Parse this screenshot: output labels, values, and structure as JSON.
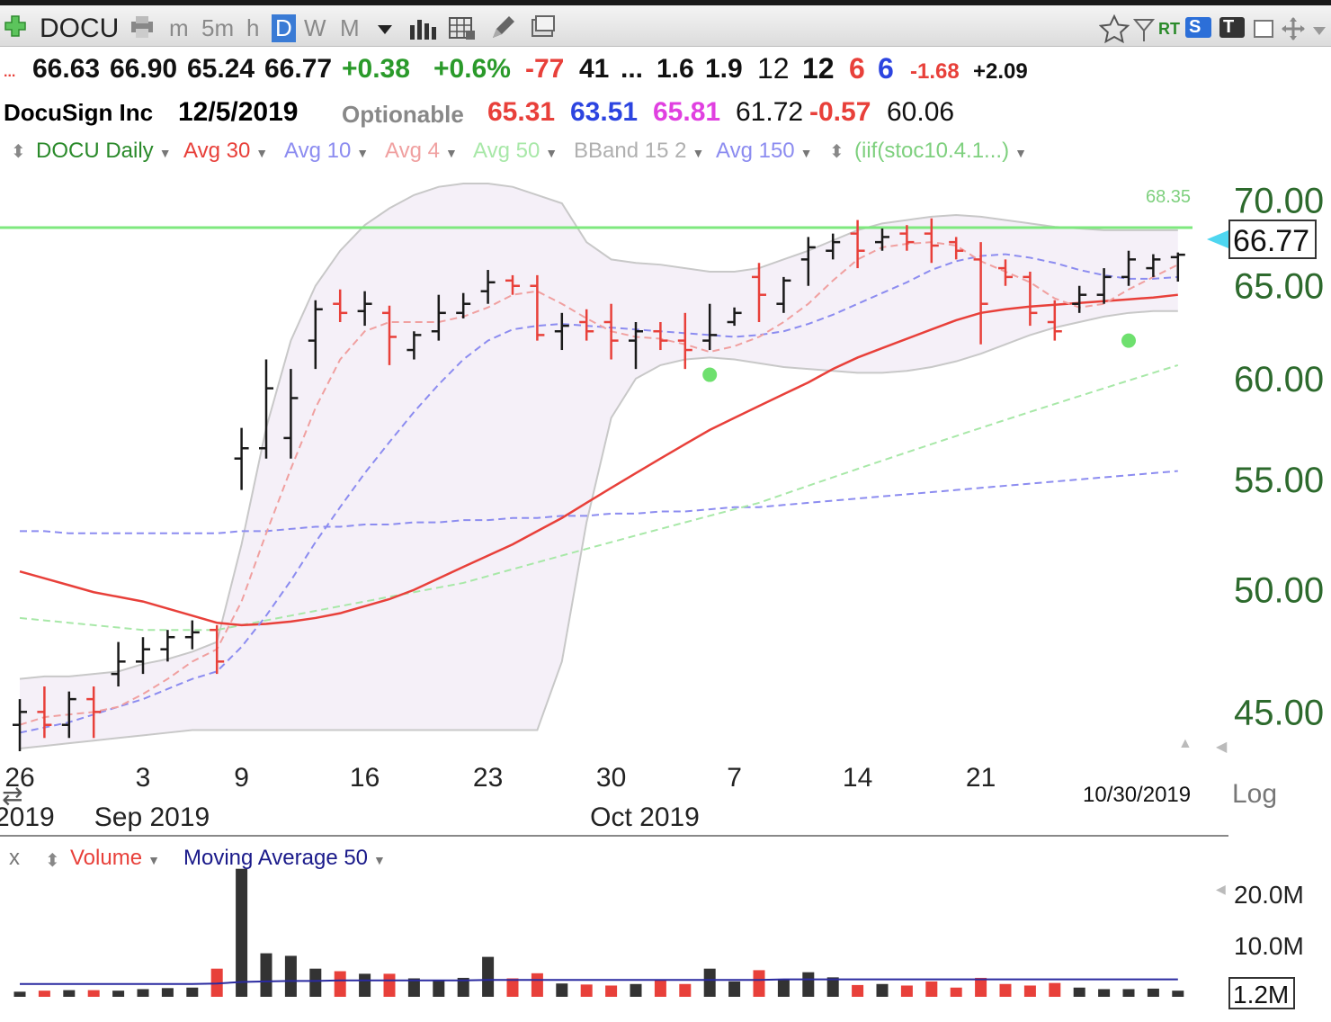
{
  "toolbar": {
    "symbol": "DOCU",
    "timeframes": [
      "m",
      "5m",
      "h",
      "D",
      "W",
      "M"
    ],
    "selected": "D",
    "sv_badge": "S",
    "rt_label": "RT",
    "t_badge": "T"
  },
  "quote": {
    "open": "66.63",
    "high": "66.90",
    "low": "65.24",
    "close": "66.77",
    "change": "+0.38",
    "change_pct": "+0.6%",
    "v1": "-77",
    "v2": "41",
    "dots": "...",
    "v3": "1.6",
    "v4": "1.9",
    "v5": "12",
    "v6": "12",
    "v7": "6",
    "v8": "6",
    "v9": "-1.68",
    "v10": "+2.09",
    "lead": "..."
  },
  "info": {
    "name": "DocuSign Inc",
    "date": "12/5/2019",
    "optionable": "Optionable",
    "n1": "65.31",
    "n2": "63.51",
    "n3": "65.81",
    "n4": "61.72",
    "n5": "-0.57",
    "n6": "60.06"
  },
  "indicators": [
    {
      "label": "DOCU Daily",
      "color": "#2a8a2a"
    },
    {
      "label": "Avg 30",
      "color": "#e8403a"
    },
    {
      "label": "Avg 10",
      "color": "#8c8cf0"
    },
    {
      "label": "Avg 4",
      "color": "#f0a0a0"
    },
    {
      "label": "Avg 50",
      "color": "#a8e8a8"
    },
    {
      "label": "BBand 15 2",
      "color": "#b0b0b0"
    },
    {
      "label": "Avg 150",
      "color": "#8c8cf0"
    },
    {
      "label": "(iif(stoc10.4.1...)",
      "color": "#7ed07e"
    }
  ],
  "colors": {
    "up": "#1a1a1a",
    "down": "#e8403a",
    "band": "#f5f0f8",
    "greenline": "#7ee87e"
  },
  "chart_data": {
    "type": "bar",
    "title": "DOCU Daily",
    "ylim": [
      43.5,
      71.5
    ],
    "yticks": [
      45,
      50,
      55,
      60,
      65,
      70
    ],
    "ytick_labels": [
      "45.00",
      "50.00",
      "55.00",
      "60.00",
      "65.00",
      "70.00"
    ],
    "scale": "Log",
    "last_price": "66.77",
    "green_line_value": 68.35,
    "green_line_label": "68.35",
    "cursor_date": "10/30/2019",
    "x_tick_labels": [
      {
        "label": "26",
        "i": 0
      },
      {
        "label": "3",
        "i": 5
      },
      {
        "label": "9",
        "i": 9
      },
      {
        "label": "16",
        "i": 14
      },
      {
        "label": "23",
        "i": 19
      },
      {
        "label": "30",
        "i": 24
      },
      {
        "label": "7",
        "i": 29
      },
      {
        "label": "14",
        "i": 34
      },
      {
        "label": "21",
        "i": 39
      }
    ],
    "x_month_labels": [
      {
        "label": "2019",
        "i": 0
      },
      {
        "label": "Sep 2019",
        "i": 5
      },
      {
        "label": "Oct 2019",
        "i": 25
      }
    ],
    "ohlc": [
      [
        44.5,
        45.5,
        43.5,
        45.0
      ],
      [
        45.0,
        46.0,
        44.0,
        44.5
      ],
      [
        44.5,
        45.8,
        44.0,
        45.5
      ],
      [
        45.5,
        46.0,
        44.0,
        45.0
      ],
      [
        46.5,
        47.8,
        46.0,
        47.0
      ],
      [
        47.0,
        48.0,
        46.5,
        47.5
      ],
      [
        47.5,
        48.3,
        47.0,
        48.0
      ],
      [
        48.0,
        48.7,
        47.5,
        48.2
      ],
      [
        48.3,
        48.5,
        46.5,
        47.0
      ],
      [
        56.0,
        57.5,
        54.5,
        56.5
      ],
      [
        56.5,
        61.0,
        56.0,
        59.5
      ],
      [
        57.0,
        60.5,
        56.0,
        59.0
      ],
      [
        62.0,
        64.2,
        60.5,
        63.7
      ],
      [
        64.0,
        64.8,
        63.0,
        63.5
      ],
      [
        63.6,
        64.7,
        62.8,
        64.0
      ],
      [
        63.5,
        63.9,
        60.7,
        62.2
      ],
      [
        61.5,
        62.5,
        61.0,
        62.3
      ],
      [
        62.5,
        64.5,
        62.0,
        63.5
      ],
      [
        63.5,
        64.6,
        63.2,
        64.0
      ],
      [
        64.7,
        65.9,
        64.0,
        65.2
      ],
      [
        65.3,
        65.6,
        64.5,
        65.0
      ],
      [
        65.0,
        65.6,
        62.0,
        62.3
      ],
      [
        62.5,
        63.5,
        61.5,
        62.8
      ],
      [
        63.0,
        63.7,
        62.0,
        62.5
      ],
      [
        63.0,
        64.0,
        61.0,
        62.0
      ],
      [
        62.0,
        63.0,
        60.5,
        62.5
      ],
      [
        62.5,
        63.0,
        61.5,
        62.0
      ],
      [
        62.0,
        63.5,
        60.5,
        61.5
      ],
      [
        62.0,
        64.0,
        61.5,
        62.3
      ],
      [
        63.0,
        63.8,
        62.8,
        63.5
      ],
      [
        65.5,
        66.3,
        63.0,
        64.5
      ],
      [
        64.0,
        65.5,
        63.5,
        65.3
      ],
      [
        66.5,
        67.8,
        65.0,
        67.2
      ],
      [
        67.0,
        68.0,
        66.5,
        67.5
      ],
      [
        68.0,
        68.8,
        66.0,
        67.0
      ],
      [
        67.5,
        68.3,
        67.0,
        67.8
      ],
      [
        68.0,
        68.5,
        67.0,
        67.5
      ],
      [
        68.0,
        68.9,
        66.3,
        67.3
      ],
      [
        67.5,
        67.8,
        66.5,
        67.0
      ],
      [
        66.5,
        67.5,
        61.8,
        64.0
      ],
      [
        66.0,
        66.5,
        65.0,
        65.5
      ],
      [
        65.5,
        65.8,
        62.8,
        63.5
      ],
      [
        63.0,
        64.2,
        62.0,
        62.5
      ],
      [
        64.0,
        65.0,
        63.5,
        64.5
      ],
      [
        64.5,
        66.0,
        64.0,
        65.5
      ],
      [
        65.5,
        67.0,
        65.0,
        66.5
      ],
      [
        66.0,
        66.8,
        65.5,
        66.5
      ],
      [
        66.63,
        66.9,
        65.24,
        66.77
      ]
    ],
    "avg30": [
      50.8,
      50.5,
      50.2,
      49.9,
      49.7,
      49.5,
      49.2,
      48.9,
      48.6,
      48.5,
      48.55,
      48.65,
      48.8,
      49.0,
      49.3,
      49.6,
      50.0,
      50.5,
      51.0,
      51.5,
      52.0,
      52.6,
      53.2,
      53.9,
      54.6,
      55.3,
      56.0,
      56.7,
      57.4,
      58.0,
      58.6,
      59.2,
      59.8,
      60.5,
      61.1,
      61.6,
      62.1,
      62.6,
      63.1,
      63.5,
      63.7,
      63.85,
      63.95,
      64.05,
      64.15,
      64.25,
      64.35,
      64.5
    ],
    "avg10": [
      44.2,
      44.4,
      44.6,
      44.9,
      45.2,
      45.5,
      45.9,
      46.3,
      46.6,
      47.6,
      48.9,
      50.4,
      52.1,
      53.7,
      55.3,
      56.8,
      58.3,
      59.7,
      61.0,
      62.0,
      62.6,
      62.8,
      62.9,
      62.8,
      62.7,
      62.6,
      62.5,
      62.4,
      62.3,
      62.2,
      62.3,
      62.5,
      62.9,
      63.4,
      64.0,
      64.6,
      65.2,
      65.9,
      66.4,
      66.7,
      66.8,
      66.6,
      66.3,
      65.9,
      65.6,
      65.4,
      65.4,
      65.5
    ],
    "avg4": [
      44.5,
      44.8,
      44.9,
      45.0,
      45.2,
      45.7,
      46.3,
      47.0,
      47.5,
      49.5,
      52.5,
      55.5,
      58.5,
      61.0,
      62.5,
      63.0,
      63.0,
      63.0,
      63.3,
      63.8,
      64.5,
      64.7,
      64.0,
      63.2,
      62.5,
      62.2,
      62.1,
      61.8,
      61.4,
      61.7,
      62.2,
      63.0,
      64.0,
      65.3,
      66.5,
      67.2,
      67.4,
      67.5,
      67.3,
      66.4,
      65.8,
      65.2,
      64.3,
      63.8,
      64.0,
      64.8,
      65.5,
      66.2
    ],
    "avg50": [
      48.8,
      48.7,
      48.6,
      48.5,
      48.4,
      48.3,
      48.3,
      48.3,
      48.3,
      48.5,
      48.7,
      48.9,
      49.1,
      49.3,
      49.5,
      49.7,
      49.9,
      50.1,
      50.3,
      50.6,
      50.9,
      51.2,
      51.5,
      51.8,
      52.1,
      52.4,
      52.7,
      53.0,
      53.3,
      53.6,
      53.9,
      54.3,
      54.7,
      55.1,
      55.5,
      55.9,
      56.3,
      56.7,
      57.1,
      57.5,
      57.9,
      58.3,
      58.7,
      59.1,
      59.5,
      59.9,
      60.3,
      60.7
    ],
    "avg150": [
      52.6,
      52.6,
      52.5,
      52.5,
      52.5,
      52.5,
      52.5,
      52.5,
      52.5,
      52.6,
      52.6,
      52.7,
      52.8,
      52.8,
      52.9,
      52.9,
      53.0,
      53.0,
      53.1,
      53.1,
      53.2,
      53.2,
      53.3,
      53.3,
      53.4,
      53.4,
      53.5,
      53.5,
      53.6,
      53.7,
      53.7,
      53.8,
      53.9,
      54.0,
      54.1,
      54.2,
      54.3,
      54.4,
      54.5,
      54.6,
      54.7,
      54.8,
      54.9,
      55.0,
      55.1,
      55.2,
      55.3,
      55.4
    ],
    "bband_upper": [
      46.3,
      46.4,
      46.4,
      46.5,
      46.6,
      46.9,
      47.1,
      47.4,
      47.8,
      52.0,
      57.5,
      62.0,
      65.0,
      67.0,
      68.5,
      69.5,
      70.3,
      70.8,
      71.0,
      71.0,
      70.8,
      70.3,
      69.8,
      67.5,
      66.5,
      66.3,
      66.2,
      66.0,
      65.8,
      65.8,
      66.0,
      66.5,
      67.0,
      67.6,
      68.2,
      68.6,
      68.8,
      69.0,
      69.1,
      69.0,
      68.8,
      68.6,
      68.4,
      68.3,
      68.2,
      68.2,
      68.2,
      68.2
    ],
    "bband_lower": [
      43.6,
      43.7,
      43.8,
      43.9,
      44.0,
      44.1,
      44.2,
      44.3,
      44.3,
      44.3,
      44.3,
      44.3,
      44.3,
      44.3,
      44.3,
      44.3,
      44.3,
      44.3,
      44.3,
      44.3,
      44.3,
      44.3,
      47.0,
      53.0,
      58.0,
      60.0,
      60.7,
      61.0,
      61.1,
      61.0,
      60.8,
      60.6,
      60.5,
      60.4,
      60.3,
      60.3,
      60.4,
      60.6,
      60.9,
      61.3,
      61.8,
      62.3,
      62.7,
      63.0,
      63.3,
      63.5,
      63.6,
      63.6
    ],
    "signal_dots": [
      {
        "i": 28,
        "value": 60.2
      },
      {
        "i": 45,
        "value": 62.0
      }
    ],
    "volume": {
      "label": "Volume",
      "ma_label": "Moving Average 50",
      "yticks": [
        10000000,
        20000000
      ],
      "ytick_labels": [
        "10.0M",
        "20.0M"
      ],
      "last_label": "1.2M",
      "ylim": [
        0,
        26000000
      ],
      "values": [
        1.0,
        1.2,
        1.3,
        1.3,
        1.2,
        1.5,
        1.7,
        1.8,
        5.5,
        25.0,
        8.5,
        8.0,
        5.5,
        5.0,
        4.5,
        4.5,
        3.6,
        3.2,
        3.7,
        7.8,
        3.6,
        4.6,
        2.6,
        2.4,
        2.2,
        2.5,
        3.2,
        2.5,
        5.5,
        3.0,
        5.2,
        3.3,
        4.8,
        3.8,
        2.3,
        2.5,
        2.2,
        3.0,
        1.8,
        3.7,
        2.5,
        2.2,
        2.7,
        1.8,
        1.5,
        1.5,
        1.6,
        1.2
      ],
      "ma": [
        2.5,
        2.5,
        2.5,
        2.5,
        2.5,
        2.5,
        2.5,
        2.5,
        2.6,
        2.9,
        3.0,
        3.1,
        3.1,
        3.2,
        3.2,
        3.2,
        3.2,
        3.2,
        3.2,
        3.3,
        3.3,
        3.3,
        3.3,
        3.3,
        3.3,
        3.3,
        3.3,
        3.3,
        3.3,
        3.3,
        3.3,
        3.4,
        3.4,
        3.4,
        3.4,
        3.4,
        3.4,
        3.4,
        3.4,
        3.4,
        3.4,
        3.4,
        3.4,
        3.4,
        3.4,
        3.4,
        3.4,
        3.4
      ]
    }
  }
}
